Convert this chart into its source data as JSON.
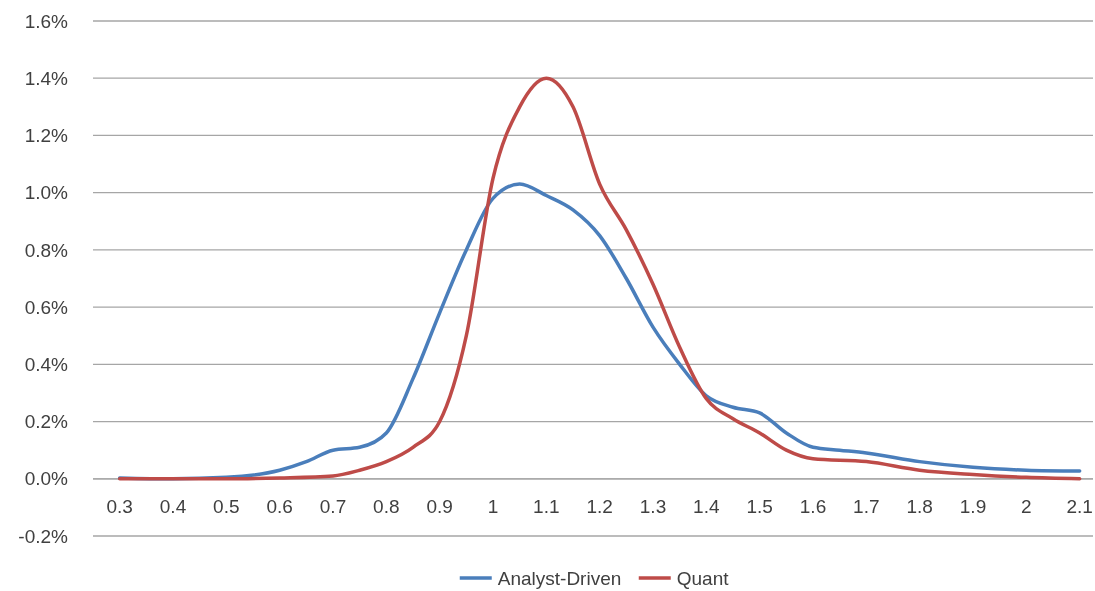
{
  "chart_data": {
    "type": "line",
    "xlim": [
      0.25,
      2.125
    ],
    "xticks": [
      0.3,
      0.4,
      0.5,
      0.6,
      0.7,
      0.8,
      0.9,
      1,
      1.1,
      1.2,
      1.3,
      1.4,
      1.5,
      1.6,
      1.7,
      1.8,
      1.9,
      2,
      2.1
    ],
    "ylim": [
      -0.2,
      1.6
    ],
    "yticks": [
      {
        "value": -0.2,
        "label": "-0.2%"
      },
      {
        "value": 0,
        "label": "0.0%"
      },
      {
        "value": 0.2,
        "label": "0.2%"
      },
      {
        "value": 0.4,
        "label": "0.4%"
      },
      {
        "value": 0.6,
        "label": "0.6%"
      },
      {
        "value": 0.8,
        "label": "0.8%"
      },
      {
        "value": 1.0,
        "label": "1.0%"
      },
      {
        "value": 1.2,
        "label": "1.2%"
      },
      {
        "value": 1.4,
        "label": "1.4%"
      },
      {
        "value": 1.6,
        "label": "1.6%"
      }
    ],
    "grid": "y",
    "legend": "bottom",
    "marker": "none",
    "line_style": "solid",
    "series": [
      {
        "name": "Analyst-Driven",
        "color": "#4a7ebb",
        "x": [
          0.3,
          0.4,
          0.5,
          0.6,
          0.65,
          0.7,
          0.75,
          0.8,
          0.85,
          0.9,
          0.95,
          1.0,
          1.05,
          1.1,
          1.15,
          1.2,
          1.25,
          1.3,
          1.35,
          1.4,
          1.45,
          1.5,
          1.55,
          1.6,
          1.65,
          1.7,
          1.8,
          1.9,
          2.0,
          2.1
        ],
        "values": [
          0.003,
          0,
          0.005,
          0.03,
          0.06,
          0.1,
          0.11,
          0.16,
          0.35,
          0.58,
          0.8,
          0.98,
          1.03,
          0.99,
          0.94,
          0.85,
          0.7,
          0.53,
          0.4,
          0.29,
          0.25,
          0.23,
          0.16,
          0.11,
          0.1,
          0.09,
          0.06,
          0.04,
          0.03,
          0.027
        ]
      },
      {
        "name": "Quant",
        "color": "#be4b48",
        "x": [
          0.3,
          0.5,
          0.6,
          0.7,
          0.75,
          0.8,
          0.85,
          0.9,
          0.95,
          1.0,
          1.05,
          1.1,
          1.15,
          1.2,
          1.25,
          1.3,
          1.35,
          1.4,
          1.45,
          1.5,
          1.55,
          1.6,
          1.7,
          1.8,
          1.9,
          2.0,
          2.1
        ],
        "values": [
          0,
          0,
          0.003,
          0.01,
          0.03,
          0.06,
          0.11,
          0.2,
          0.5,
          1.05,
          1.3,
          1.4,
          1.3,
          1.03,
          0.87,
          0.68,
          0.46,
          0.28,
          0.21,
          0.16,
          0.1,
          0.07,
          0.06,
          0.03,
          0.015,
          0.005,
          0
        ]
      }
    ]
  }
}
